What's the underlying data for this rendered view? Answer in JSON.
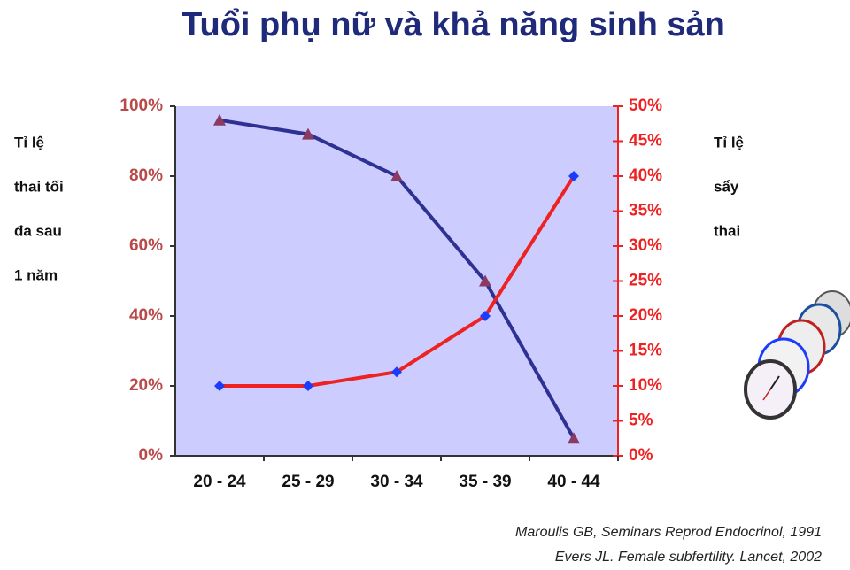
{
  "chart_data": {
    "type": "line",
    "title": "Tuổi phụ nữ và khả năng sinh sản",
    "ylabel": [
      "Tỉ lệ",
      "thai tối",
      "đa sau",
      "1 năm"
    ],
    "y2label": [
      "Tỉ lệ",
      "sẩy",
      "thai"
    ],
    "categories": [
      "20 - 24",
      "25 - 29",
      "30 - 34",
      "35 - 39",
      "40 - 44"
    ],
    "series": [
      {
        "color": "#2e3192",
        "marker": "triangle",
        "marker_color": "#8b3a62",
        "values": [
          96,
          92,
          80,
          50,
          5
        ]
      },
      {
        "color": "#ee2222",
        "marker": "diamond",
        "marker_color": "#1a3cff",
        "axis": "y2",
        "values": [
          10,
          10,
          12,
          20,
          40
        ]
      }
    ],
    "ylim": [
      0,
      100
    ],
    "yticks": [
      {
        "value": 0,
        "label": "0%"
      },
      {
        "value": 20,
        "label": "20%"
      },
      {
        "value": 40,
        "label": "40%"
      },
      {
        "value": 60,
        "label": "60%"
      },
      {
        "value": 80,
        "label": "80%"
      },
      {
        "value": 100,
        "label": "100%"
      }
    ],
    "y2lim": [
      0,
      50
    ],
    "y2ticks": [
      {
        "value": 0,
        "label": "0%"
      },
      {
        "value": 5,
        "label": "5%"
      },
      {
        "value": 10,
        "label": "10%"
      },
      {
        "value": 15,
        "label": "15%"
      },
      {
        "value": 20,
        "label": "20%"
      },
      {
        "value": 25,
        "label": "25%"
      },
      {
        "value": 30,
        "label": "30%"
      },
      {
        "value": 35,
        "label": "35%"
      },
      {
        "value": 40,
        "label": "40%"
      },
      {
        "value": 45,
        "label": "45%"
      },
      {
        "value": 50,
        "label": "50%"
      }
    ],
    "plot_background": "#ccccff",
    "sources": [
      "Maroulis GB, Seminars Reprod Endocrinol, 1991",
      "Evers JL. Female subfertility. Lancet, 2002"
    ]
  }
}
